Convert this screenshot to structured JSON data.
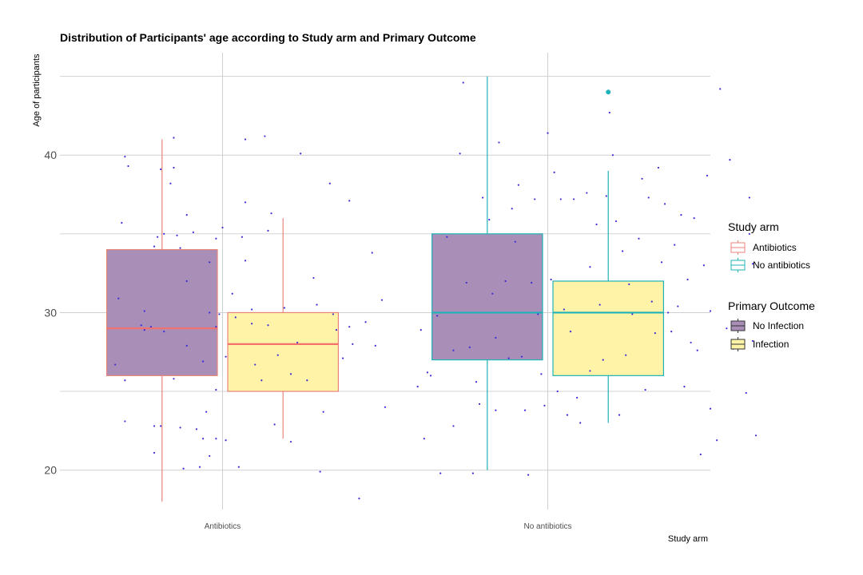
{
  "chart_data": {
    "type": "box",
    "title": "Distribution of Participants' age according to Study arm and Primary Outcome",
    "xlabel": "Study arm",
    "ylabel": "Age of participants",
    "categories": [
      "Antibiotics",
      "No antibiotics"
    ],
    "ylim": [
      17.5,
      46.5
    ],
    "yticks": [
      20,
      30,
      40
    ],
    "grid": true,
    "colors": {
      "Antibiotics": "#e8837a",
      "No antibiotics": "#1fb2b8",
      "No Infection": "#a98fb7",
      "Infection": "#fff3a8",
      "points": "#3b2bd6",
      "median_Antibiotics": "#f4716b",
      "median_No antibiotics": "#1fb2b8"
    },
    "boxes": [
      {
        "study_arm": "Antibiotics",
        "outcome": "No Infection",
        "whisker_low": 18,
        "q1": 26,
        "median": 29,
        "q3": 34,
        "whisker_high": 41,
        "outliers": []
      },
      {
        "study_arm": "Antibiotics",
        "outcome": "Infection",
        "whisker_low": 22,
        "q1": 25,
        "median": 28,
        "q3": 30,
        "whisker_high": 36,
        "outliers": []
      },
      {
        "study_arm": "No antibiotics",
        "outcome": "No Infection",
        "whisker_low": 20,
        "q1": 27,
        "median": 30,
        "q3": 35,
        "whisker_high": 45,
        "outliers": []
      },
      {
        "study_arm": "No antibiotics",
        "outcome": "Infection",
        "whisker_low": 23,
        "q1": 26,
        "median": 30,
        "q3": 32,
        "whisker_high": 39,
        "outliers": [
          44
        ]
      }
    ],
    "legend": {
      "position": "right",
      "groups": [
        {
          "title": "Study arm",
          "entries": [
            "Antibiotics",
            "No antibiotics"
          ]
        },
        {
          "title": "Primary Outcome",
          "entries": [
            "No Infection",
            "Infection"
          ]
        }
      ]
    },
    "jitter_points": [
      {
        "arm": 0,
        "dx": -0.3,
        "y": 39.9
      },
      {
        "arm": 0,
        "dx": -0.29,
        "y": 39.3
      },
      {
        "arm": 0,
        "dx": -0.31,
        "y": 35.7
      },
      {
        "arm": 0,
        "dx": -0.32,
        "y": 30.9
      },
      {
        "arm": 0,
        "dx": -0.3,
        "y": 25.7
      },
      {
        "arm": 0,
        "dx": -0.33,
        "y": 26.7
      },
      {
        "arm": 0,
        "dx": -0.3,
        "y": 23.1
      },
      {
        "arm": 0,
        "dx": -0.25,
        "y": 29.2
      },
      {
        "arm": 0,
        "dx": -0.24,
        "y": 28.9
      },
      {
        "arm": 0,
        "dx": -0.24,
        "y": 30.1
      },
      {
        "arm": 0,
        "dx": -0.22,
        "y": 29.1
      },
      {
        "arm": 0,
        "dx": -0.21,
        "y": 34.2
      },
      {
        "arm": 0,
        "dx": -0.2,
        "y": 34.8
      },
      {
        "arm": 0,
        "dx": -0.21,
        "y": 22.8
      },
      {
        "arm": 0,
        "dx": -0.21,
        "y": 21.1
      },
      {
        "arm": 0,
        "dx": -0.19,
        "y": 39.1
      },
      {
        "arm": 0,
        "dx": -0.18,
        "y": 35.0
      },
      {
        "arm": 0,
        "dx": -0.18,
        "y": 28.8
      },
      {
        "arm": 0,
        "dx": -0.19,
        "y": 22.8
      },
      {
        "arm": 0,
        "dx": -0.16,
        "y": 38.2
      },
      {
        "arm": 0,
        "dx": -0.15,
        "y": 41.1
      },
      {
        "arm": 0,
        "dx": -0.15,
        "y": 39.2
      },
      {
        "arm": 0,
        "dx": -0.15,
        "y": 25.8
      },
      {
        "arm": 0,
        "dx": -0.14,
        "y": 34.9
      },
      {
        "arm": 0,
        "dx": -0.13,
        "y": 34.1
      },
      {
        "arm": 0,
        "dx": -0.13,
        "y": 22.7
      },
      {
        "arm": 0,
        "dx": -0.11,
        "y": 36.2
      },
      {
        "arm": 0,
        "dx": -0.11,
        "y": 32.0
      },
      {
        "arm": 0,
        "dx": -0.11,
        "y": 27.9
      },
      {
        "arm": 0,
        "dx": -0.12,
        "y": 20.1
      },
      {
        "arm": 0,
        "dx": -0.09,
        "y": 35.1
      },
      {
        "arm": 0,
        "dx": -0.08,
        "y": 22.6
      },
      {
        "arm": 0,
        "dx": -0.07,
        "y": 20.2
      },
      {
        "arm": 0,
        "dx": -0.06,
        "y": 26.9
      },
      {
        "arm": 0,
        "dx": -0.06,
        "y": 22.0
      },
      {
        "arm": 0,
        "dx": -0.04,
        "y": 33.2
      },
      {
        "arm": 0,
        "dx": -0.04,
        "y": 30.0
      },
      {
        "arm": 0,
        "dx": -0.05,
        "y": 23.7
      },
      {
        "arm": 0,
        "dx": -0.04,
        "y": 20.9
      },
      {
        "arm": 0,
        "dx": -0.02,
        "y": 34.7
      },
      {
        "arm": 0,
        "dx": -0.02,
        "y": 29.1
      },
      {
        "arm": 0,
        "dx": -0.02,
        "y": 25.1
      },
      {
        "arm": 0,
        "dx": -0.01,
        "y": 29.9
      },
      {
        "arm": 0,
        "dx": -0.02,
        "y": 22.0
      },
      {
        "arm": 0,
        "dx": 0.0,
        "y": 35.4
      },
      {
        "arm": 0,
        "dx": 0.01,
        "y": 27.2
      },
      {
        "arm": 0,
        "dx": 0.01,
        "y": 21.9
      },
      {
        "arm": 0,
        "dx": 0.03,
        "y": 31.2
      },
      {
        "arm": 0,
        "dx": 0.04,
        "y": 29.7
      },
      {
        "arm": 0,
        "dx": 0.05,
        "y": 20.2
      },
      {
        "arm": 0,
        "dx": 0.06,
        "y": 34.8
      },
      {
        "arm": 0,
        "dx": 0.07,
        "y": 37.0
      },
      {
        "arm": 0,
        "dx": 0.07,
        "y": 41.0
      },
      {
        "arm": 0,
        "dx": 0.07,
        "y": 33.3
      },
      {
        "arm": 0,
        "dx": 0.09,
        "y": 30.2
      },
      {
        "arm": 0,
        "dx": 0.09,
        "y": 29.3
      },
      {
        "arm": 0,
        "dx": 0.1,
        "y": 26.7
      },
      {
        "arm": 0,
        "dx": 0.12,
        "y": 25.7
      },
      {
        "arm": 0,
        "dx": 0.13,
        "y": 41.2
      },
      {
        "arm": 0,
        "dx": 0.14,
        "y": 35.2
      },
      {
        "arm": 0,
        "dx": 0.15,
        "y": 36.3
      },
      {
        "arm": 0,
        "dx": 0.14,
        "y": 29.2
      },
      {
        "arm": 0,
        "dx": 0.16,
        "y": 22.9
      },
      {
        "arm": 0,
        "dx": 0.19,
        "y": 30.3
      },
      {
        "arm": 0,
        "dx": 0.17,
        "y": 27.3
      },
      {
        "arm": 0,
        "dx": 0.21,
        "y": 26.1
      },
      {
        "arm": 0,
        "dx": 0.21,
        "y": 21.8
      },
      {
        "arm": 0,
        "dx": 0.23,
        "y": 28.1
      },
      {
        "arm": 0,
        "dx": 0.24,
        "y": 40.1
      },
      {
        "arm": 0,
        "dx": 0.26,
        "y": 25.7
      },
      {
        "arm": 0,
        "dx": 0.28,
        "y": 32.2
      },
      {
        "arm": 0,
        "dx": 0.29,
        "y": 30.5
      },
      {
        "arm": 0,
        "dx": 0.3,
        "y": 19.9
      },
      {
        "arm": 0,
        "dx": 0.31,
        "y": 23.7
      },
      {
        "arm": 0,
        "dx": 0.33,
        "y": 38.2
      },
      {
        "arm": 0,
        "dx": 0.34,
        "y": 29.9
      },
      {
        "arm": 0,
        "dx": 0.35,
        "y": 28.9
      },
      {
        "arm": 0,
        "dx": 0.37,
        "y": 27.1
      },
      {
        "arm": 0,
        "dx": 0.39,
        "y": 37.1
      },
      {
        "arm": 0,
        "dx": 0.39,
        "y": 29.1
      },
      {
        "arm": 0,
        "dx": 0.4,
        "y": 28.0
      },
      {
        "arm": 0,
        "dx": 0.42,
        "y": 18.2
      },
      {
        "arm": 0,
        "dx": 0.44,
        "y": 29.4
      },
      {
        "arm": 0,
        "dx": 0.46,
        "y": 33.8
      },
      {
        "arm": 0,
        "dx": 0.47,
        "y": 27.9
      },
      {
        "arm": 0,
        "dx": 0.49,
        "y": 30.8
      },
      {
        "arm": 0,
        "dx": 0.5,
        "y": 24.0
      },
      {
        "arm": 1,
        "dx": -0.4,
        "y": 25.3
      },
      {
        "arm": 1,
        "dx": -0.39,
        "y": 28.9
      },
      {
        "arm": 1,
        "dx": -0.38,
        "y": 22.0
      },
      {
        "arm": 1,
        "dx": -0.37,
        "y": 26.2
      },
      {
        "arm": 1,
        "dx": -0.36,
        "y": 26.0
      },
      {
        "arm": 1,
        "dx": -0.34,
        "y": 29.8
      },
      {
        "arm": 1,
        "dx": -0.33,
        "y": 19.8
      },
      {
        "arm": 1,
        "dx": -0.31,
        "y": 34.8
      },
      {
        "arm": 1,
        "dx": -0.29,
        "y": 22.8
      },
      {
        "arm": 1,
        "dx": -0.29,
        "y": 27.6
      },
      {
        "arm": 1,
        "dx": -0.27,
        "y": 40.1
      },
      {
        "arm": 1,
        "dx": -0.26,
        "y": 44.6
      },
      {
        "arm": 1,
        "dx": -0.25,
        "y": 31.9
      },
      {
        "arm": 1,
        "dx": -0.24,
        "y": 27.8
      },
      {
        "arm": 1,
        "dx": -0.23,
        "y": 19.8
      },
      {
        "arm": 1,
        "dx": -0.22,
        "y": 25.6
      },
      {
        "arm": 1,
        "dx": -0.21,
        "y": 24.2
      },
      {
        "arm": 1,
        "dx": -0.2,
        "y": 37.3
      },
      {
        "arm": 1,
        "dx": -0.18,
        "y": 35.9
      },
      {
        "arm": 1,
        "dx": -0.17,
        "y": 31.2
      },
      {
        "arm": 1,
        "dx": -0.16,
        "y": 28.4
      },
      {
        "arm": 1,
        "dx": -0.16,
        "y": 23.8
      },
      {
        "arm": 1,
        "dx": -0.15,
        "y": 40.8
      },
      {
        "arm": 1,
        "dx": -0.13,
        "y": 32.0
      },
      {
        "arm": 1,
        "dx": -0.12,
        "y": 27.1
      },
      {
        "arm": 1,
        "dx": -0.11,
        "y": 36.6
      },
      {
        "arm": 1,
        "dx": -0.1,
        "y": 34.5
      },
      {
        "arm": 1,
        "dx": -0.09,
        "y": 38.1
      },
      {
        "arm": 1,
        "dx": -0.08,
        "y": 27.2
      },
      {
        "arm": 1,
        "dx": -0.07,
        "y": 23.8
      },
      {
        "arm": 1,
        "dx": -0.06,
        "y": 19.7
      },
      {
        "arm": 1,
        "dx": -0.05,
        "y": 31.9
      },
      {
        "arm": 1,
        "dx": -0.04,
        "y": 37.2
      },
      {
        "arm": 1,
        "dx": -0.03,
        "y": 29.9
      },
      {
        "arm": 1,
        "dx": -0.02,
        "y": 26.1
      },
      {
        "arm": 1,
        "dx": -0.01,
        "y": 24.1
      },
      {
        "arm": 1,
        "dx": 0.0,
        "y": 41.4
      },
      {
        "arm": 1,
        "dx": 0.01,
        "y": 32.1
      },
      {
        "arm": 1,
        "dx": 0.02,
        "y": 38.9
      },
      {
        "arm": 1,
        "dx": 0.03,
        "y": 25.0
      },
      {
        "arm": 1,
        "dx": 0.04,
        "y": 37.2
      },
      {
        "arm": 1,
        "dx": 0.05,
        "y": 30.2
      },
      {
        "arm": 1,
        "dx": 0.06,
        "y": 23.5
      },
      {
        "arm": 1,
        "dx": 0.07,
        "y": 28.8
      },
      {
        "arm": 1,
        "dx": 0.08,
        "y": 37.2
      },
      {
        "arm": 1,
        "dx": 0.09,
        "y": 24.6
      },
      {
        "arm": 1,
        "dx": 0.1,
        "y": 23.0
      },
      {
        "arm": 1,
        "dx": 0.12,
        "y": 37.6
      },
      {
        "arm": 1,
        "dx": 0.13,
        "y": 32.9
      },
      {
        "arm": 1,
        "dx": 0.13,
        "y": 26.3
      },
      {
        "arm": 1,
        "dx": 0.15,
        "y": 35.6
      },
      {
        "arm": 1,
        "dx": 0.16,
        "y": 30.5
      },
      {
        "arm": 1,
        "dx": 0.17,
        "y": 27.0
      },
      {
        "arm": 1,
        "dx": 0.18,
        "y": 37.4
      },
      {
        "arm": 1,
        "dx": 0.19,
        "y": 42.7
      },
      {
        "arm": 1,
        "dx": 0.2,
        "y": 40.0
      },
      {
        "arm": 1,
        "dx": 0.21,
        "y": 35.8
      },
      {
        "arm": 1,
        "dx": 0.22,
        "y": 23.5
      },
      {
        "arm": 1,
        "dx": 0.23,
        "y": 33.9
      },
      {
        "arm": 1,
        "dx": 0.24,
        "y": 27.3
      },
      {
        "arm": 1,
        "dx": 0.25,
        "y": 31.8
      },
      {
        "arm": 1,
        "dx": 0.26,
        "y": 29.9
      },
      {
        "arm": 1,
        "dx": 0.28,
        "y": 34.7
      },
      {
        "arm": 1,
        "dx": 0.29,
        "y": 38.5
      },
      {
        "arm": 1,
        "dx": 0.3,
        "y": 25.1
      },
      {
        "arm": 1,
        "dx": 0.31,
        "y": 37.3
      },
      {
        "arm": 1,
        "dx": 0.32,
        "y": 30.7
      },
      {
        "arm": 1,
        "dx": 0.33,
        "y": 28.7
      },
      {
        "arm": 1,
        "dx": 0.34,
        "y": 39.2
      },
      {
        "arm": 1,
        "dx": 0.35,
        "y": 33.2
      },
      {
        "arm": 1,
        "dx": 0.36,
        "y": 36.9
      },
      {
        "arm": 1,
        "dx": 0.37,
        "y": 30.0
      },
      {
        "arm": 1,
        "dx": 0.38,
        "y": 28.8
      },
      {
        "arm": 1,
        "dx": 0.39,
        "y": 34.3
      },
      {
        "arm": 1,
        "dx": 0.4,
        "y": 30.4
      },
      {
        "arm": 1,
        "dx": 0.41,
        "y": 36.2
      },
      {
        "arm": 1,
        "dx": 0.42,
        "y": 25.3
      },
      {
        "arm": 1,
        "dx": 0.43,
        "y": 32.1
      },
      {
        "arm": 1,
        "dx": 0.44,
        "y": 28.1
      },
      {
        "arm": 1,
        "dx": 0.45,
        "y": 36.0
      },
      {
        "arm": 1,
        "dx": 0.46,
        "y": 27.6
      },
      {
        "arm": 1,
        "dx": 0.47,
        "y": 21.0
      },
      {
        "arm": 1,
        "dx": 0.48,
        "y": 33.0
      },
      {
        "arm": 1,
        "dx": 0.49,
        "y": 38.7
      },
      {
        "arm": 1,
        "dx": 0.5,
        "y": 30.1
      },
      {
        "arm": 1,
        "dx": 0.5,
        "y": 23.9
      },
      {
        "arm": 1,
        "dx": 0.52,
        "y": 21.9
      },
      {
        "arm": 1,
        "dx": 0.53,
        "y": 44.2
      },
      {
        "arm": 1,
        "dx": 0.55,
        "y": 29.0
      },
      {
        "arm": 1,
        "dx": 0.56,
        "y": 39.7
      },
      {
        "arm": 1,
        "dx": 0.57,
        "y": 27.7
      },
      {
        "arm": 1,
        "dx": 0.58,
        "y": 29.0
      },
      {
        "arm": 1,
        "dx": 0.61,
        "y": 24.9
      },
      {
        "arm": 1,
        "dx": 0.62,
        "y": 35.0
      },
      {
        "arm": 1,
        "dx": 0.62,
        "y": 37.3
      },
      {
        "arm": 1,
        "dx": 0.63,
        "y": 28.2
      },
      {
        "arm": 1,
        "dx": 0.63,
        "y": 33.1
      },
      {
        "arm": 1,
        "dx": 0.64,
        "y": 22.2
      }
    ]
  }
}
